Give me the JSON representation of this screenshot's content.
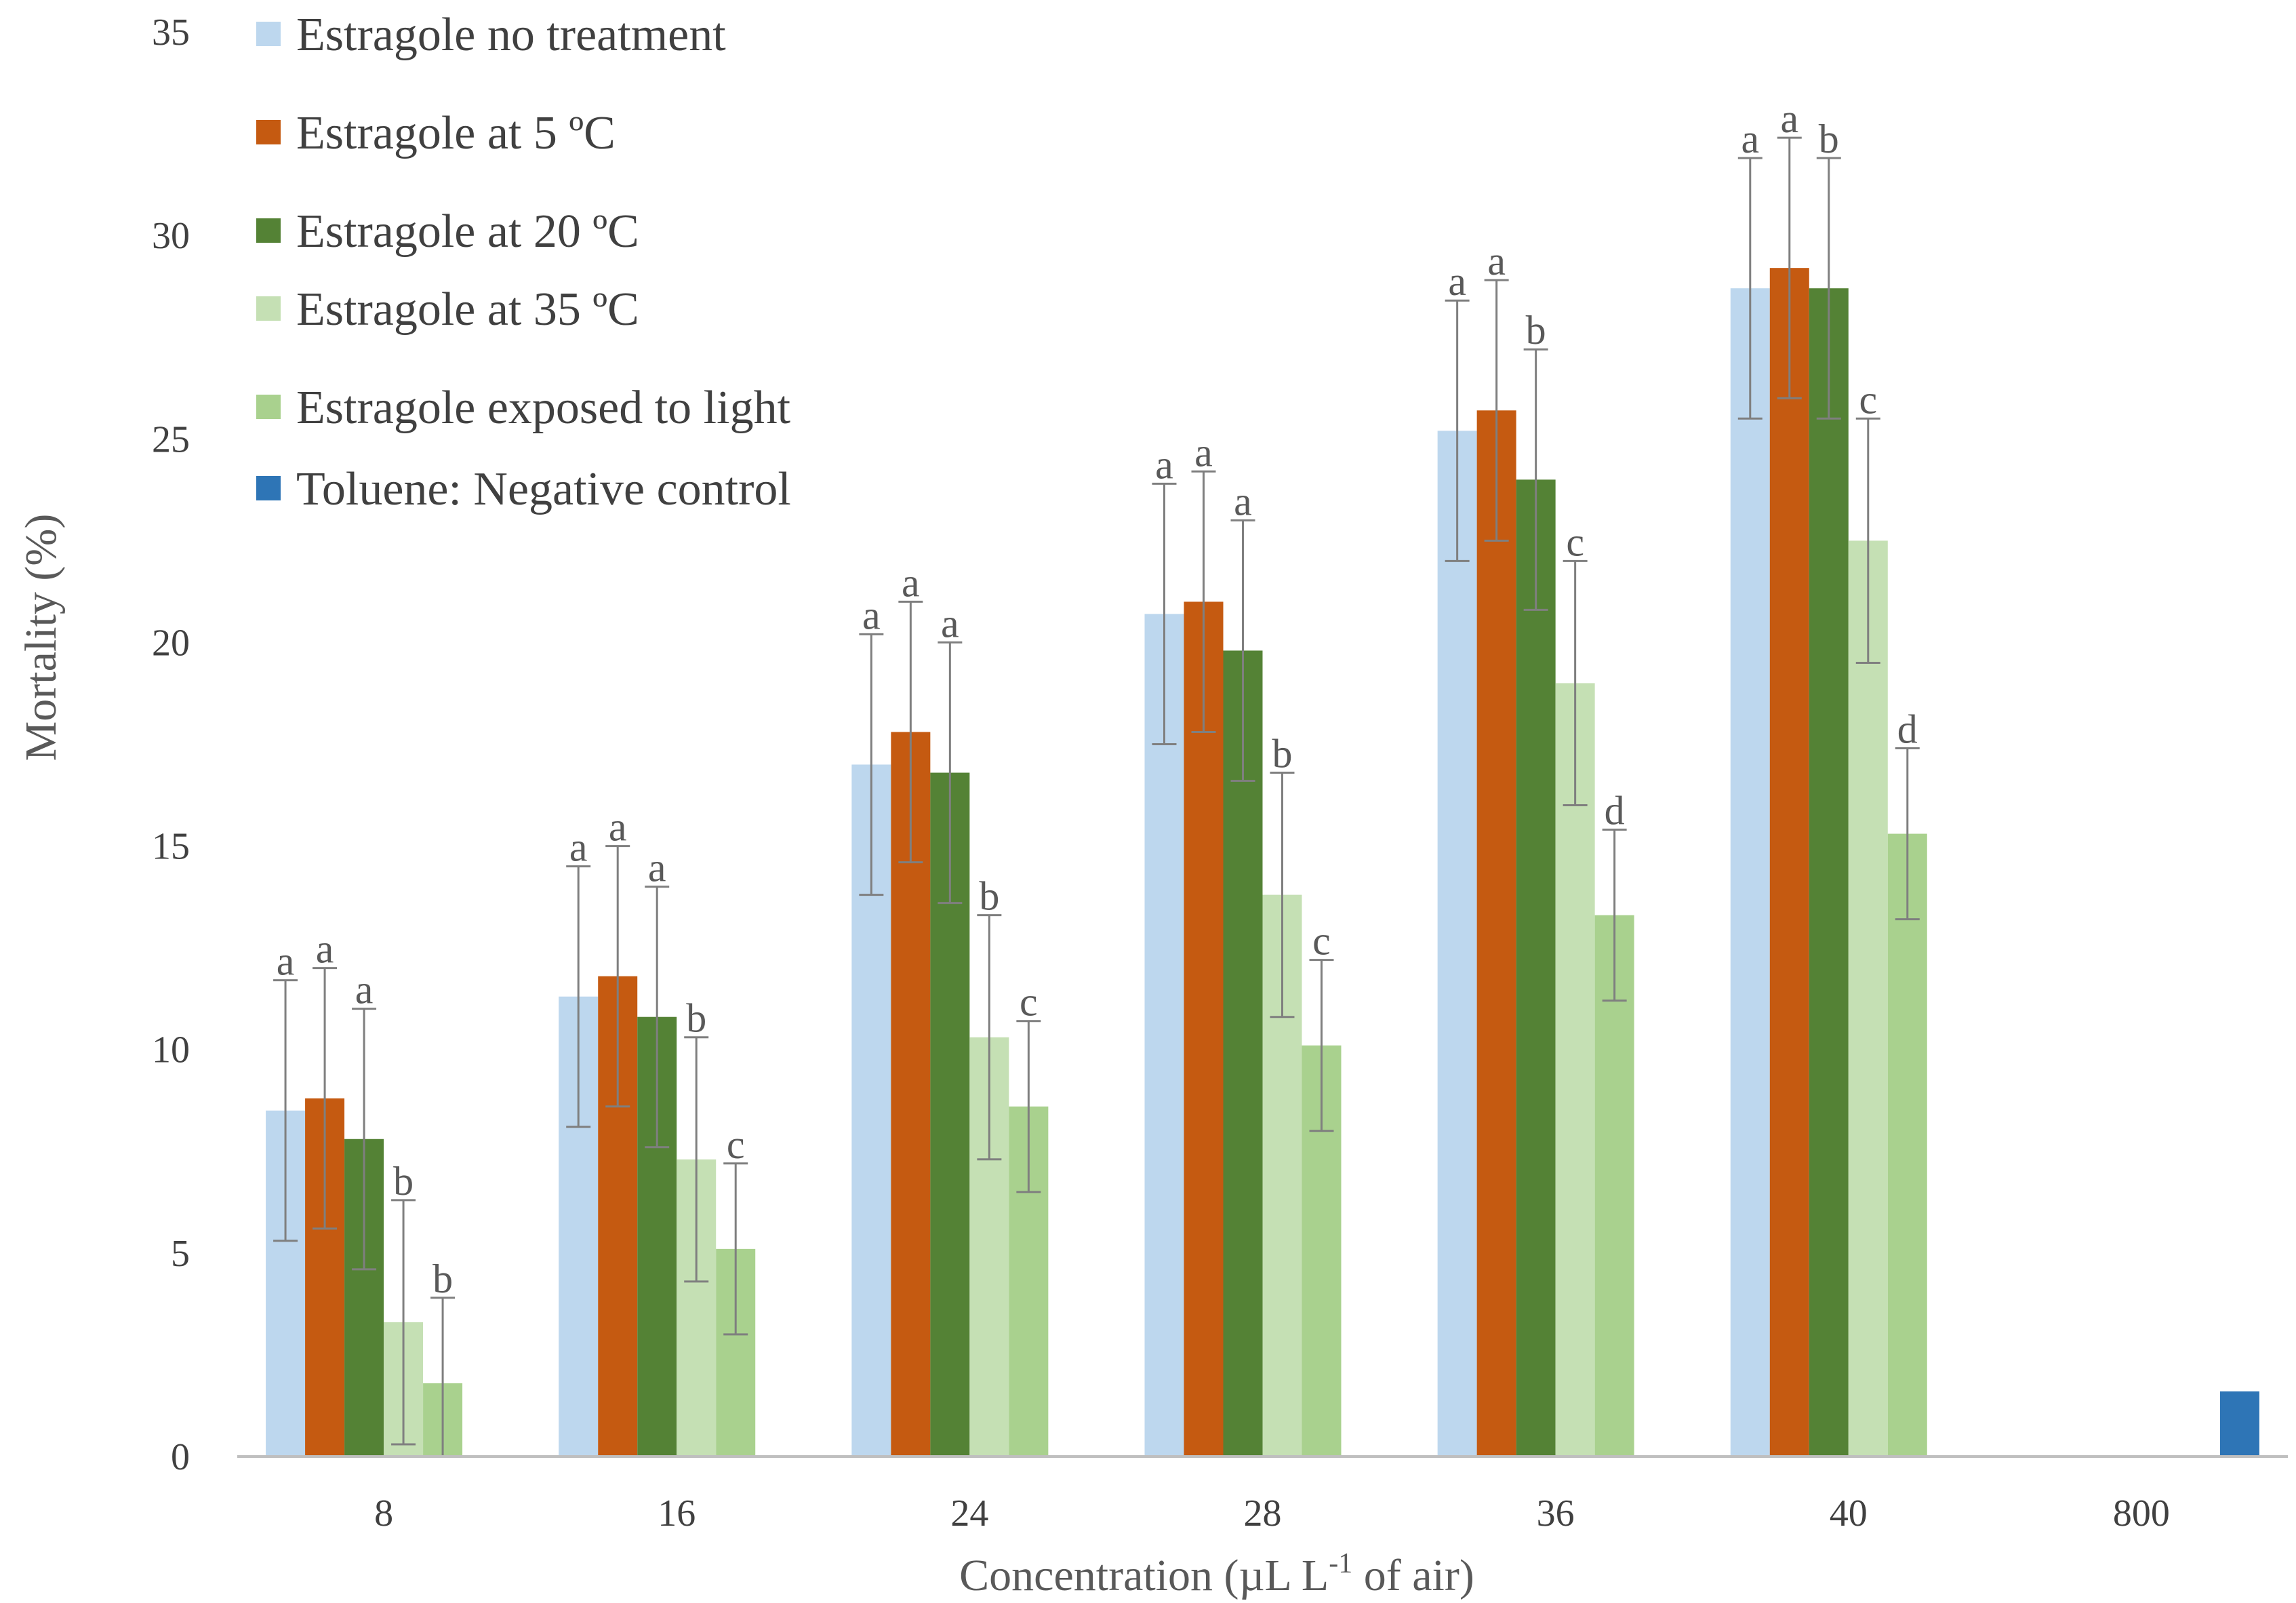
{
  "chart_data": {
    "type": "bar",
    "title": "",
    "ylabel": "Mortality (%)",
    "xlabel": "Concentration (µL L-1 of air)",
    "xlabel_parts": {
      "pre": "Concentration  (µL L",
      "sup": "-1",
      "post": " of air)"
    },
    "ylim": [
      0,
      35
    ],
    "yticks": [
      "0",
      "5",
      "10",
      "15",
      "20",
      "25",
      "30",
      "35"
    ],
    "grid": false,
    "legend_position": "top-left",
    "categories": [
      "8",
      "16",
      "24",
      "28",
      "36",
      "40",
      "800"
    ],
    "series": [
      {
        "name": "Estragole no treatment",
        "color": "#bdd7ee",
        "values": [
          8.5,
          11.3,
          17.0,
          20.7,
          25.2,
          28.7,
          null
        ],
        "errors": [
          3.2,
          3.2,
          3.2,
          3.2,
          3.2,
          3.2,
          null
        ],
        "labels": [
          "a",
          "a",
          "a",
          "a",
          "a",
          "a",
          null
        ]
      },
      {
        "name": "Estragole at 5 ºC",
        "color": "#c55a11",
        "values": [
          8.8,
          11.8,
          17.8,
          21.0,
          25.7,
          29.2,
          null
        ],
        "errors": [
          3.2,
          3.2,
          3.2,
          3.2,
          3.2,
          3.2,
          null
        ],
        "labels": [
          "a",
          "a",
          "a",
          "a",
          "a",
          "a",
          null
        ]
      },
      {
        "name": "Estragole at 20 ºC",
        "color": "#548235",
        "values": [
          7.8,
          10.8,
          16.8,
          19.8,
          24.0,
          28.7,
          null
        ],
        "errors": [
          3.2,
          3.2,
          3.2,
          3.2,
          3.2,
          3.2,
          null
        ],
        "labels": [
          "a",
          "a",
          "a",
          "a",
          "b",
          "b",
          null
        ]
      },
      {
        "name": "Estragole at 35 ºC",
        "color": "#c5e0b4",
        "values": [
          3.3,
          7.3,
          10.3,
          13.8,
          19.0,
          22.5,
          null
        ],
        "errors": [
          3.0,
          3.0,
          3.0,
          3.0,
          3.0,
          3.0,
          null
        ],
        "labels": [
          "b",
          "b",
          "b",
          "b",
          "c",
          "c",
          null
        ]
      },
      {
        "name": "Estragole exposed to light",
        "color": "#a9d18e",
        "values": [
          1.8,
          5.1,
          8.6,
          10.1,
          13.3,
          15.3,
          null
        ],
        "errors": [
          2.1,
          2.1,
          2.1,
          2.1,
          2.1,
          2.1,
          null
        ],
        "labels": [
          "b",
          "c",
          "c",
          "c",
          "d",
          "d",
          null
        ]
      },
      {
        "name": "Toluene: Negative control",
        "color": "#2e75b6",
        "values": [
          null,
          null,
          null,
          null,
          null,
          null,
          1.6
        ],
        "errors": [
          null,
          null,
          null,
          null,
          null,
          null,
          null
        ],
        "labels": [
          null,
          null,
          null,
          null,
          null,
          null,
          null
        ]
      }
    ]
  }
}
